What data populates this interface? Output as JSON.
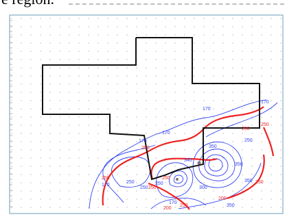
{
  "caption_fragment": "e region.",
  "chart_data": {
    "type": "contour",
    "title": "",
    "xlabel": "",
    "ylabel": "",
    "boundary_polygon": {
      "color": "#111111",
      "description": "study region outline"
    },
    "contour_sets": [
      {
        "color": "#3344ee",
        "labels": [
          "170",
          "170",
          "170",
          "170",
          "170",
          "250",
          "250",
          "250",
          "350",
          "350",
          "340",
          "350",
          "300",
          "250",
          "170",
          "350"
        ]
      },
      {
        "color": "#ee2222",
        "labels": [
          "250",
          "250",
          "250",
          "250",
          "250",
          "250",
          "200",
          "250",
          "200",
          "250"
        ]
      }
    ],
    "grid": true
  }
}
